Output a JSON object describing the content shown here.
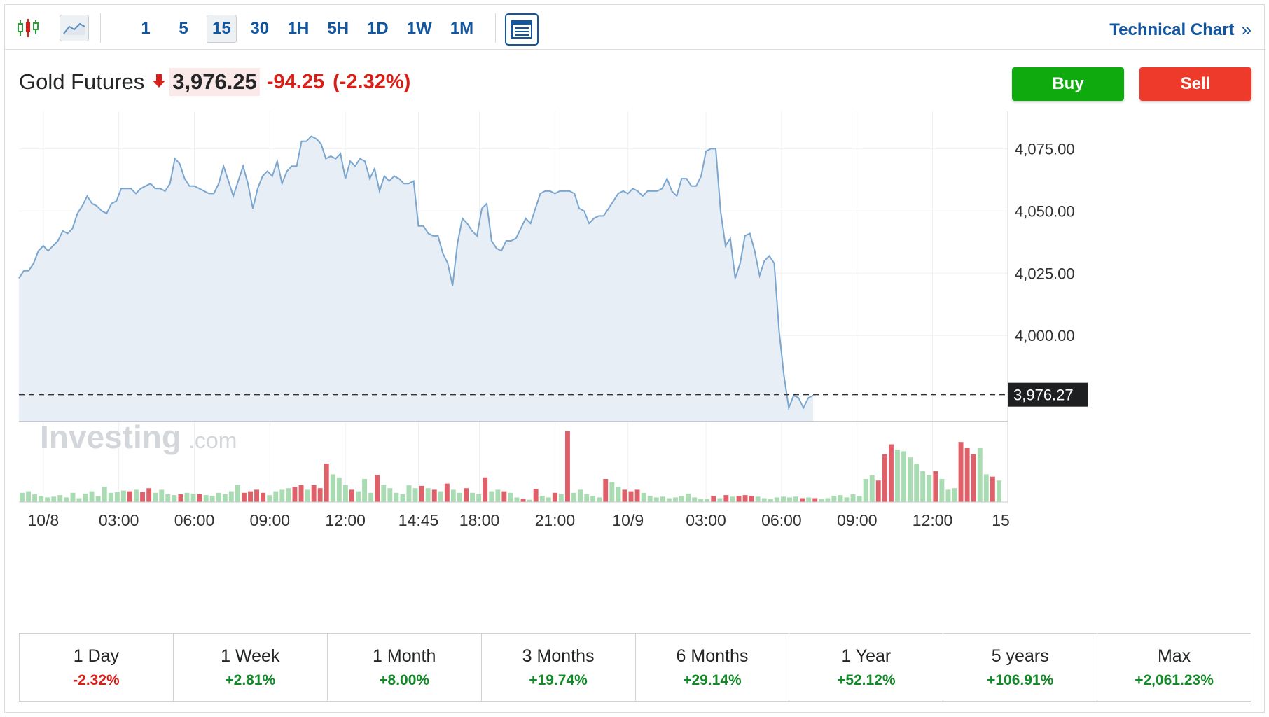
{
  "toolbar": {
    "chart_type_icons": [
      "candlestick-icon",
      "area-chart-icon"
    ],
    "intervals": [
      {
        "label": "1",
        "active": false
      },
      {
        "label": "5",
        "active": false
      },
      {
        "label": "15",
        "active": true
      },
      {
        "label": "30",
        "active": false
      },
      {
        "label": "1H",
        "active": false
      },
      {
        "label": "5H",
        "active": false
      },
      {
        "label": "1D",
        "active": false
      },
      {
        "label": "1W",
        "active": false
      },
      {
        "label": "1M",
        "active": false
      }
    ],
    "layout_icon": "layout-icon",
    "technical_chart_label": "Technical Chart",
    "technical_chart_chevron": "»"
  },
  "instrument": {
    "name": "Gold Futures",
    "price": "3,976.25",
    "change": "-94.25",
    "change_pct": "(-2.32%)",
    "direction_icon": "down-arrow-icon"
  },
  "actions": {
    "buy_label": "Buy",
    "sell_label": "Sell"
  },
  "colors": {
    "accent": "#1256a0",
    "up": "#138a27",
    "down": "#d91e18",
    "buy": "#0eaa0e",
    "sell": "#ee3a2b",
    "area_fill": "#e8eef6",
    "line": "#7aa6cf",
    "vol_up": "#a9dcb3",
    "vol_down": "#e0606a"
  },
  "chart_data": {
    "type": "area",
    "watermark": {
      "brand": "Investing",
      "suffix": ".com"
    },
    "y_ticks": [
      "4,075.00",
      "4,050.00",
      "4,025.00",
      "4,000.00"
    ],
    "y_tick_values": [
      4075,
      4050,
      4025,
      4000
    ],
    "ylim": [
      3965.5,
      4090
    ],
    "current_price_label": "3,976.27",
    "current_price": 3976.27,
    "x_tick_labels": [
      "10/8",
      "03:00",
      "06:00",
      "09:00",
      "12:00",
      "14:45",
      "18:00",
      "21:00",
      "10/9",
      "03:00",
      "06:00",
      "09:00",
      "12:00",
      "15"
    ],
    "x_tick_positions": [
      10,
      41,
      72,
      103,
      134,
      164,
      189,
      220,
      250,
      282,
      313,
      344,
      375,
      403
    ],
    "price_series": [
      [
        0,
        4023
      ],
      [
        2,
        4026
      ],
      [
        4,
        4026
      ],
      [
        6,
        4029
      ],
      [
        8,
        4034
      ],
      [
        10,
        4036
      ],
      [
        12,
        4034
      ],
      [
        14,
        4036
      ],
      [
        16,
        4038
      ],
      [
        18,
        4042
      ],
      [
        20,
        4041
      ],
      [
        22,
        4043
      ],
      [
        24,
        4049
      ],
      [
        26,
        4052
      ],
      [
        28,
        4056
      ],
      [
        30,
        4053
      ],
      [
        32,
        4052
      ],
      [
        34,
        4050
      ],
      [
        36,
        4049
      ],
      [
        38,
        4053
      ],
      [
        40,
        4054
      ],
      [
        42,
        4059
      ],
      [
        44,
        4059
      ],
      [
        46,
        4059
      ],
      [
        48,
        4057
      ],
      [
        50,
        4059
      ],
      [
        52,
        4060
      ],
      [
        54,
        4061
      ],
      [
        56,
        4059
      ],
      [
        58,
        4059
      ],
      [
        60,
        4058
      ],
      [
        62,
        4061
      ],
      [
        64,
        4071
      ],
      [
        66,
        4069
      ],
      [
        68,
        4063
      ],
      [
        70,
        4060
      ],
      [
        72,
        4060
      ],
      [
        74,
        4059
      ],
      [
        76,
        4058
      ],
      [
        78,
        4057
      ],
      [
        80,
        4057
      ],
      [
        82,
        4061
      ],
      [
        84,
        4068
      ],
      [
        86,
        4062
      ],
      [
        88,
        4056
      ],
      [
        90,
        4062
      ],
      [
        92,
        4068
      ],
      [
        94,
        4061
      ],
      [
        96,
        4051
      ],
      [
        98,
        4059
      ],
      [
        100,
        4064
      ],
      [
        102,
        4066
      ],
      [
        104,
        4064
      ],
      [
        106,
        4070
      ],
      [
        108,
        4061
      ],
      [
        110,
        4066
      ],
      [
        112,
        4068
      ],
      [
        114,
        4068
      ],
      [
        116,
        4078
      ],
      [
        118,
        4078
      ],
      [
        120,
        4080
      ],
      [
        122,
        4079
      ],
      [
        124,
        4077
      ],
      [
        126,
        4071
      ],
      [
        128,
        4072
      ],
      [
        130,
        4071
      ],
      [
        132,
        4073
      ],
      [
        134,
        4063
      ],
      [
        136,
        4070
      ],
      [
        138,
        4068
      ],
      [
        140,
        4071
      ],
      [
        142,
        4070
      ],
      [
        144,
        4063
      ],
      [
        146,
        4067
      ],
      [
        148,
        4058
      ],
      [
        150,
        4064
      ],
      [
        152,
        4062
      ],
      [
        154,
        4064
      ],
      [
        156,
        4063
      ],
      [
        158,
        4061
      ],
      [
        160,
        4061
      ],
      [
        162,
        4062
      ],
      [
        164,
        4044
      ],
      [
        166,
        4044
      ],
      [
        168,
        4041
      ],
      [
        170,
        4040
      ],
      [
        172,
        4040
      ],
      [
        174,
        4033
      ],
      [
        176,
        4029
      ],
      [
        178,
        4020
      ],
      [
        180,
        4037
      ],
      [
        182,
        4047
      ],
      [
        184,
        4045
      ],
      [
        186,
        4042
      ],
      [
        188,
        4040
      ],
      [
        190,
        4051
      ],
      [
        192,
        4053
      ],
      [
        194,
        4038
      ],
      [
        196,
        4035
      ],
      [
        198,
        4034
      ],
      [
        200,
        4038
      ],
      [
        202,
        4038
      ],
      [
        204,
        4039
      ],
      [
        206,
        4043
      ],
      [
        208,
        4047
      ],
      [
        210,
        4045
      ],
      [
        212,
        4051
      ],
      [
        214,
        4057
      ],
      [
        216,
        4058
      ],
      [
        218,
        4058
      ],
      [
        220,
        4057
      ],
      [
        222,
        4058
      ],
      [
        224,
        4058
      ],
      [
        226,
        4058
      ],
      [
        228,
        4057
      ],
      [
        230,
        4051
      ],
      [
        232,
        4050
      ],
      [
        234,
        4045
      ],
      [
        236,
        4047
      ],
      [
        238,
        4048
      ],
      [
        240,
        4048
      ],
      [
        242,
        4051
      ],
      [
        244,
        4054
      ],
      [
        246,
        4057
      ],
      [
        248,
        4058
      ],
      [
        250,
        4057
      ],
      [
        252,
        4059
      ],
      [
        254,
        4058
      ],
      [
        256,
        4056
      ],
      [
        258,
        4058
      ],
      [
        260,
        4058
      ],
      [
        262,
        4058
      ],
      [
        264,
        4059
      ],
      [
        266,
        4063
      ],
      [
        268,
        4058
      ],
      [
        270,
        4056
      ],
      [
        272,
        4063
      ],
      [
        274,
        4063
      ],
      [
        276,
        4060
      ],
      [
        278,
        4060
      ],
      [
        280,
        4064
      ],
      [
        282,
        4074
      ],
      [
        284,
        4075
      ],
      [
        286,
        4075
      ],
      [
        288,
        4050
      ],
      [
        290,
        4036
      ],
      [
        292,
        4039
      ],
      [
        294,
        4023
      ],
      [
        296,
        4029
      ],
      [
        298,
        4040
      ],
      [
        300,
        4041
      ],
      [
        302,
        4034
      ],
      [
        304,
        4024
      ],
      [
        306,
        4030
      ],
      [
        308,
        4032
      ],
      [
        310,
        4029
      ],
      [
        312,
        4002
      ],
      [
        314,
        3984
      ],
      [
        316,
        3971
      ],
      [
        318,
        3976
      ],
      [
        320,
        3975
      ],
      [
        322,
        3971
      ],
      [
        324,
        3975
      ],
      [
        326,
        3976
      ]
    ],
    "volume_series": [
      [
        0,
        12,
        1
      ],
      [
        1,
        14,
        1
      ],
      [
        2,
        10,
        1
      ],
      [
        3,
        8,
        1
      ],
      [
        4,
        6,
        1
      ],
      [
        5,
        7,
        1
      ],
      [
        6,
        9,
        1
      ],
      [
        7,
        6,
        1
      ],
      [
        8,
        12,
        1
      ],
      [
        9,
        5,
        1
      ],
      [
        10,
        11,
        1
      ],
      [
        11,
        14,
        1
      ],
      [
        12,
        8,
        1
      ],
      [
        13,
        20,
        1
      ],
      [
        14,
        12,
        1
      ],
      [
        15,
        13,
        1
      ],
      [
        16,
        15,
        1
      ],
      [
        17,
        14,
        0
      ],
      [
        18,
        16,
        1
      ],
      [
        19,
        13,
        0
      ],
      [
        20,
        18,
        0
      ],
      [
        21,
        12,
        1
      ],
      [
        22,
        16,
        1
      ],
      [
        23,
        10,
        1
      ],
      [
        24,
        9,
        1
      ],
      [
        25,
        10,
        0
      ],
      [
        26,
        12,
        1
      ],
      [
        27,
        11,
        1
      ],
      [
        28,
        10,
        0
      ],
      [
        29,
        9,
        1
      ],
      [
        30,
        8,
        1
      ],
      [
        31,
        12,
        1
      ],
      [
        32,
        10,
        1
      ],
      [
        33,
        14,
        1
      ],
      [
        34,
        22,
        1
      ],
      [
        35,
        12,
        0
      ],
      [
        36,
        14,
        0
      ],
      [
        37,
        16,
        0
      ],
      [
        38,
        12,
        0
      ],
      [
        39,
        9,
        1
      ],
      [
        40,
        14,
        1
      ],
      [
        41,
        16,
        1
      ],
      [
        42,
        18,
        1
      ],
      [
        43,
        20,
        0
      ],
      [
        44,
        22,
        0
      ],
      [
        45,
        16,
        1
      ],
      [
        46,
        22,
        0
      ],
      [
        47,
        18,
        0
      ],
      [
        48,
        50,
        0
      ],
      [
        49,
        36,
        1
      ],
      [
        50,
        32,
        1
      ],
      [
        51,
        22,
        1
      ],
      [
        52,
        16,
        0
      ],
      [
        53,
        14,
        1
      ],
      [
        54,
        30,
        1
      ],
      [
        55,
        12,
        1
      ],
      [
        56,
        35,
        0
      ],
      [
        57,
        22,
        1
      ],
      [
        58,
        18,
        1
      ],
      [
        59,
        12,
        1
      ],
      [
        60,
        10,
        1
      ],
      [
        61,
        22,
        1
      ],
      [
        62,
        18,
        1
      ],
      [
        63,
        21,
        0
      ],
      [
        64,
        18,
        1
      ],
      [
        65,
        16,
        0
      ],
      [
        66,
        14,
        1
      ],
      [
        67,
        24,
        0
      ],
      [
        68,
        16,
        1
      ],
      [
        69,
        12,
        1
      ],
      [
        70,
        18,
        0
      ],
      [
        71,
        12,
        1
      ],
      [
        72,
        10,
        1
      ],
      [
        73,
        32,
        0
      ],
      [
        74,
        14,
        1
      ],
      [
        75,
        16,
        1
      ],
      [
        76,
        14,
        0
      ],
      [
        77,
        12,
        1
      ],
      [
        78,
        6,
        1
      ],
      [
        79,
        4,
        0
      ],
      [
        80,
        3,
        1
      ],
      [
        81,
        17,
        0
      ],
      [
        82,
        8,
        1
      ],
      [
        83,
        6,
        1
      ],
      [
        84,
        12,
        0
      ],
      [
        85,
        10,
        1
      ],
      [
        86,
        92,
        0
      ],
      [
        87,
        12,
        1
      ],
      [
        88,
        16,
        1
      ],
      [
        89,
        10,
        1
      ],
      [
        90,
        8,
        1
      ],
      [
        91,
        6,
        1
      ],
      [
        92,
        30,
        0
      ],
      [
        93,
        26,
        1
      ],
      [
        94,
        20,
        1
      ],
      [
        95,
        16,
        0
      ],
      [
        96,
        14,
        0
      ],
      [
        97,
        16,
        0
      ],
      [
        98,
        12,
        1
      ],
      [
        99,
        8,
        1
      ],
      [
        100,
        6,
        1
      ],
      [
        101,
        7,
        1
      ],
      [
        102,
        5,
        1
      ],
      [
        103,
        6,
        1
      ],
      [
        104,
        8,
        1
      ],
      [
        105,
        11,
        1
      ],
      [
        106,
        6,
        1
      ],
      [
        107,
        4,
        1
      ],
      [
        108,
        4,
        1
      ],
      [
        109,
        8,
        0
      ],
      [
        110,
        5,
        1
      ],
      [
        111,
        9,
        0
      ],
      [
        112,
        7,
        1
      ],
      [
        113,
        8,
        0
      ],
      [
        114,
        9,
        0
      ],
      [
        115,
        8,
        0
      ],
      [
        116,
        7,
        1
      ],
      [
        117,
        5,
        1
      ],
      [
        118,
        4,
        1
      ],
      [
        119,
        6,
        1
      ],
      [
        120,
        7,
        1
      ],
      [
        121,
        6,
        1
      ],
      [
        122,
        7,
        1
      ],
      [
        123,
        5,
        0
      ],
      [
        124,
        6,
        1
      ],
      [
        125,
        5,
        0
      ],
      [
        126,
        4,
        1
      ],
      [
        127,
        5,
        1
      ],
      [
        128,
        8,
        1
      ],
      [
        129,
        9,
        1
      ],
      [
        130,
        6,
        1
      ],
      [
        131,
        10,
        1
      ],
      [
        132,
        8,
        1
      ],
      [
        133,
        30,
        1
      ],
      [
        134,
        35,
        1
      ],
      [
        135,
        28,
        0
      ],
      [
        136,
        62,
        0
      ],
      [
        137,
        75,
        0
      ],
      [
        138,
        68,
        1
      ],
      [
        139,
        66,
        1
      ],
      [
        140,
        58,
        1
      ],
      [
        141,
        50,
        1
      ],
      [
        142,
        40,
        1
      ],
      [
        143,
        35,
        1
      ],
      [
        144,
        40,
        0
      ],
      [
        145,
        30,
        1
      ],
      [
        146,
        16,
        1
      ],
      [
        147,
        18,
        1
      ],
      [
        148,
        78,
        0
      ],
      [
        149,
        70,
        0
      ],
      [
        150,
        62,
        0
      ],
      [
        151,
        70,
        1
      ],
      [
        152,
        36,
        1
      ],
      [
        153,
        33,
        0
      ],
      [
        154,
        28,
        1
      ]
    ]
  },
  "periods": [
    {
      "label": "1 Day",
      "value": "-2.32%",
      "dir": "neg"
    },
    {
      "label": "1 Week",
      "value": "+2.81%",
      "dir": "pos"
    },
    {
      "label": "1 Month",
      "value": "+8.00%",
      "dir": "pos"
    },
    {
      "label": "3 Months",
      "value": "+19.74%",
      "dir": "pos"
    },
    {
      "label": "6 Months",
      "value": "+29.14%",
      "dir": "pos"
    },
    {
      "label": "1 Year",
      "value": "+52.12%",
      "dir": "pos"
    },
    {
      "label": "5 years",
      "value": "+106.91%",
      "dir": "pos"
    },
    {
      "label": "Max",
      "value": "+2,061.23%",
      "dir": "pos"
    }
  ]
}
